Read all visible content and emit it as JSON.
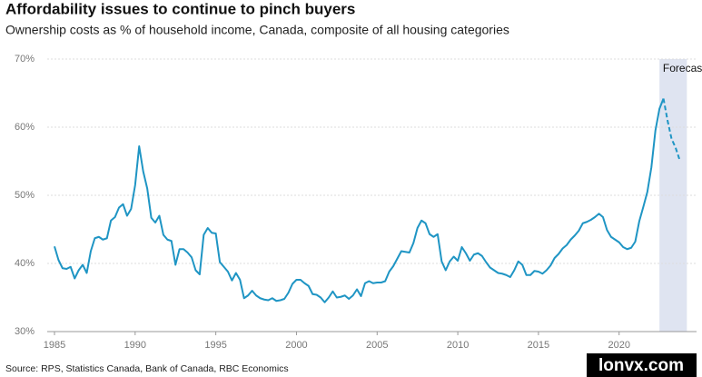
{
  "chart_data": {
    "type": "line",
    "title": "Affordability issues to continue to pinch buyers",
    "subtitle": "Ownership costs as % of household income, Canada, composite of all housing categories",
    "source": "Source: RPS, Statistics Canada, Bank of Canada, RBC Economics",
    "watermark": "lonvx.com",
    "annotations": [
      {
        "text": "Forecast",
        "xrange": [
          2022.5,
          2024.2
        ],
        "color": "#dfe4f1"
      }
    ],
    "xlim": [
      1984.55,
      2024.8
    ],
    "xticks": [
      1985,
      1990,
      1995,
      2000,
      2005,
      2010,
      2015,
      2020
    ],
    "ylim": [
      30,
      70
    ],
    "yticks": [
      {
        "value": 30,
        "label": "30%"
      },
      {
        "value": 40,
        "label": "40%"
      },
      {
        "value": 50,
        "label": "50%"
      },
      {
        "value": 60,
        "label": "60%"
      },
      {
        "value": 70,
        "label": "70%"
      }
    ],
    "grid": true,
    "series": [
      {
        "color": "#1f95c4",
        "dashed": false,
        "x": [
          1985,
          1985.25,
          1985.5,
          1985.75,
          1986,
          1986.25,
          1986.5,
          1986.75,
          1987,
          1987.25,
          1987.5,
          1987.75,
          1988,
          1988.25,
          1988.5,
          1988.75,
          1989,
          1989.25,
          1989.5,
          1989.75,
          1990,
          1990.25,
          1990.5,
          1990.75,
          1991,
          1991.25,
          1991.5,
          1991.75,
          1992,
          1992.25,
          1992.5,
          1992.75,
          1993,
          1993.25,
          1993.5,
          1993.75,
          1994,
          1994.25,
          1994.5,
          1994.75,
          1995,
          1995.25,
          1995.5,
          1995.75,
          1996,
          1996.25,
          1996.5,
          1996.75,
          1997,
          1997.25,
          1997.5,
          1997.75,
          1998,
          1998.25,
          1998.5,
          1998.75,
          1999,
          1999.25,
          1999.5,
          1999.75,
          2000,
          2000.25,
          2000.5,
          2000.75,
          2001,
          2001.25,
          2001.5,
          2001.75,
          2002,
          2002.25,
          2002.5,
          2002.75,
          2003,
          2003.25,
          2003.5,
          2003.75,
          2004,
          2004.25,
          2004.5,
          2004.75,
          2005,
          2005.25,
          2005.5,
          2005.75,
          2006,
          2006.25,
          2006.5,
          2006.75,
          2007,
          2007.25,
          2007.5,
          2007.75,
          2008,
          2008.25,
          2008.5,
          2008.75,
          2009,
          2009.25,
          2009.5,
          2009.75,
          2010,
          2010.25,
          2010.5,
          2010.75,
          2011,
          2011.25,
          2011.5,
          2011.75,
          2012,
          2012.25,
          2012.5,
          2012.75,
          2013,
          2013.25,
          2013.5,
          2013.75,
          2014,
          2014.25,
          2014.5,
          2014.75,
          2015,
          2015.25,
          2015.5,
          2015.75,
          2016,
          2016.25,
          2016.5,
          2016.75,
          2017,
          2017.25,
          2017.5,
          2017.75,
          2018,
          2018.25,
          2018.5,
          2018.75,
          2019,
          2019.25,
          2019.5,
          2019.75,
          2020,
          2020.25,
          2020.5,
          2020.75,
          2021,
          2021.25,
          2021.5,
          2021.75,
          2022,
          2022.25,
          2022.5,
          2022.75
        ],
        "values": [
          42.5,
          40.5,
          39.3,
          39.2,
          39.5,
          37.8,
          39.0,
          39.8,
          38.6,
          41.8,
          43.7,
          43.9,
          43.5,
          43.7,
          46.3,
          46.8,
          48.2,
          48.7,
          47.0,
          48.0,
          51.5,
          57.2,
          53.5,
          51.0,
          46.7,
          46.0,
          47.0,
          44.2,
          43.5,
          43.3,
          39.8,
          42.1,
          42.1,
          41.6,
          40.9,
          39.0,
          38.4,
          44.2,
          45.2,
          44.5,
          44.4,
          40.2,
          39.5,
          38.8,
          37.5,
          38.6,
          37.6,
          34.9,
          35.3,
          36.0,
          35.3,
          34.9,
          34.7,
          34.6,
          34.9,
          34.5,
          34.6,
          34.8,
          35.7,
          37.0,
          37.6,
          37.6,
          37.1,
          36.7,
          35.5,
          35.4,
          35.0,
          34.3,
          35.0,
          35.9,
          35.0,
          35.1,
          35.3,
          34.8,
          35.3,
          36.2,
          35.2,
          37.1,
          37.4,
          37.1,
          37.2,
          37.2,
          37.4,
          38.8,
          39.6,
          40.7,
          41.8,
          41.7,
          41.6,
          43.0,
          45.2,
          46.3,
          45.9,
          44.3,
          43.9,
          44.3,
          40.3,
          39.0,
          40.3,
          41.0,
          40.4,
          42.4,
          41.5,
          40.4,
          41.3,
          41.5,
          41.1,
          40.2,
          39.4,
          39.0,
          38.6,
          38.5,
          38.3,
          38.0,
          39.0,
          40.3,
          39.8,
          38.3,
          38.3,
          38.9,
          38.8,
          38.5,
          39.0,
          39.7,
          40.8,
          41.4,
          42.2,
          42.7,
          43.5,
          44.1,
          44.8,
          45.9,
          46.1,
          46.4,
          46.8,
          47.3,
          46.8,
          44.9,
          43.9,
          43.5,
          43.1,
          42.4,
          42.1,
          42.3,
          43.2,
          46.2,
          48.3,
          50.5,
          54.1,
          59.5,
          62.7,
          64.2
        ]
      },
      {
        "color": "#1f95c4",
        "dashed": true,
        "x": [
          2022.75,
          2023,
          2023.25,
          2023.5,
          2023.75
        ],
        "values": [
          64.2,
          61.0,
          58.3,
          57.0,
          55.2
        ]
      }
    ]
  }
}
